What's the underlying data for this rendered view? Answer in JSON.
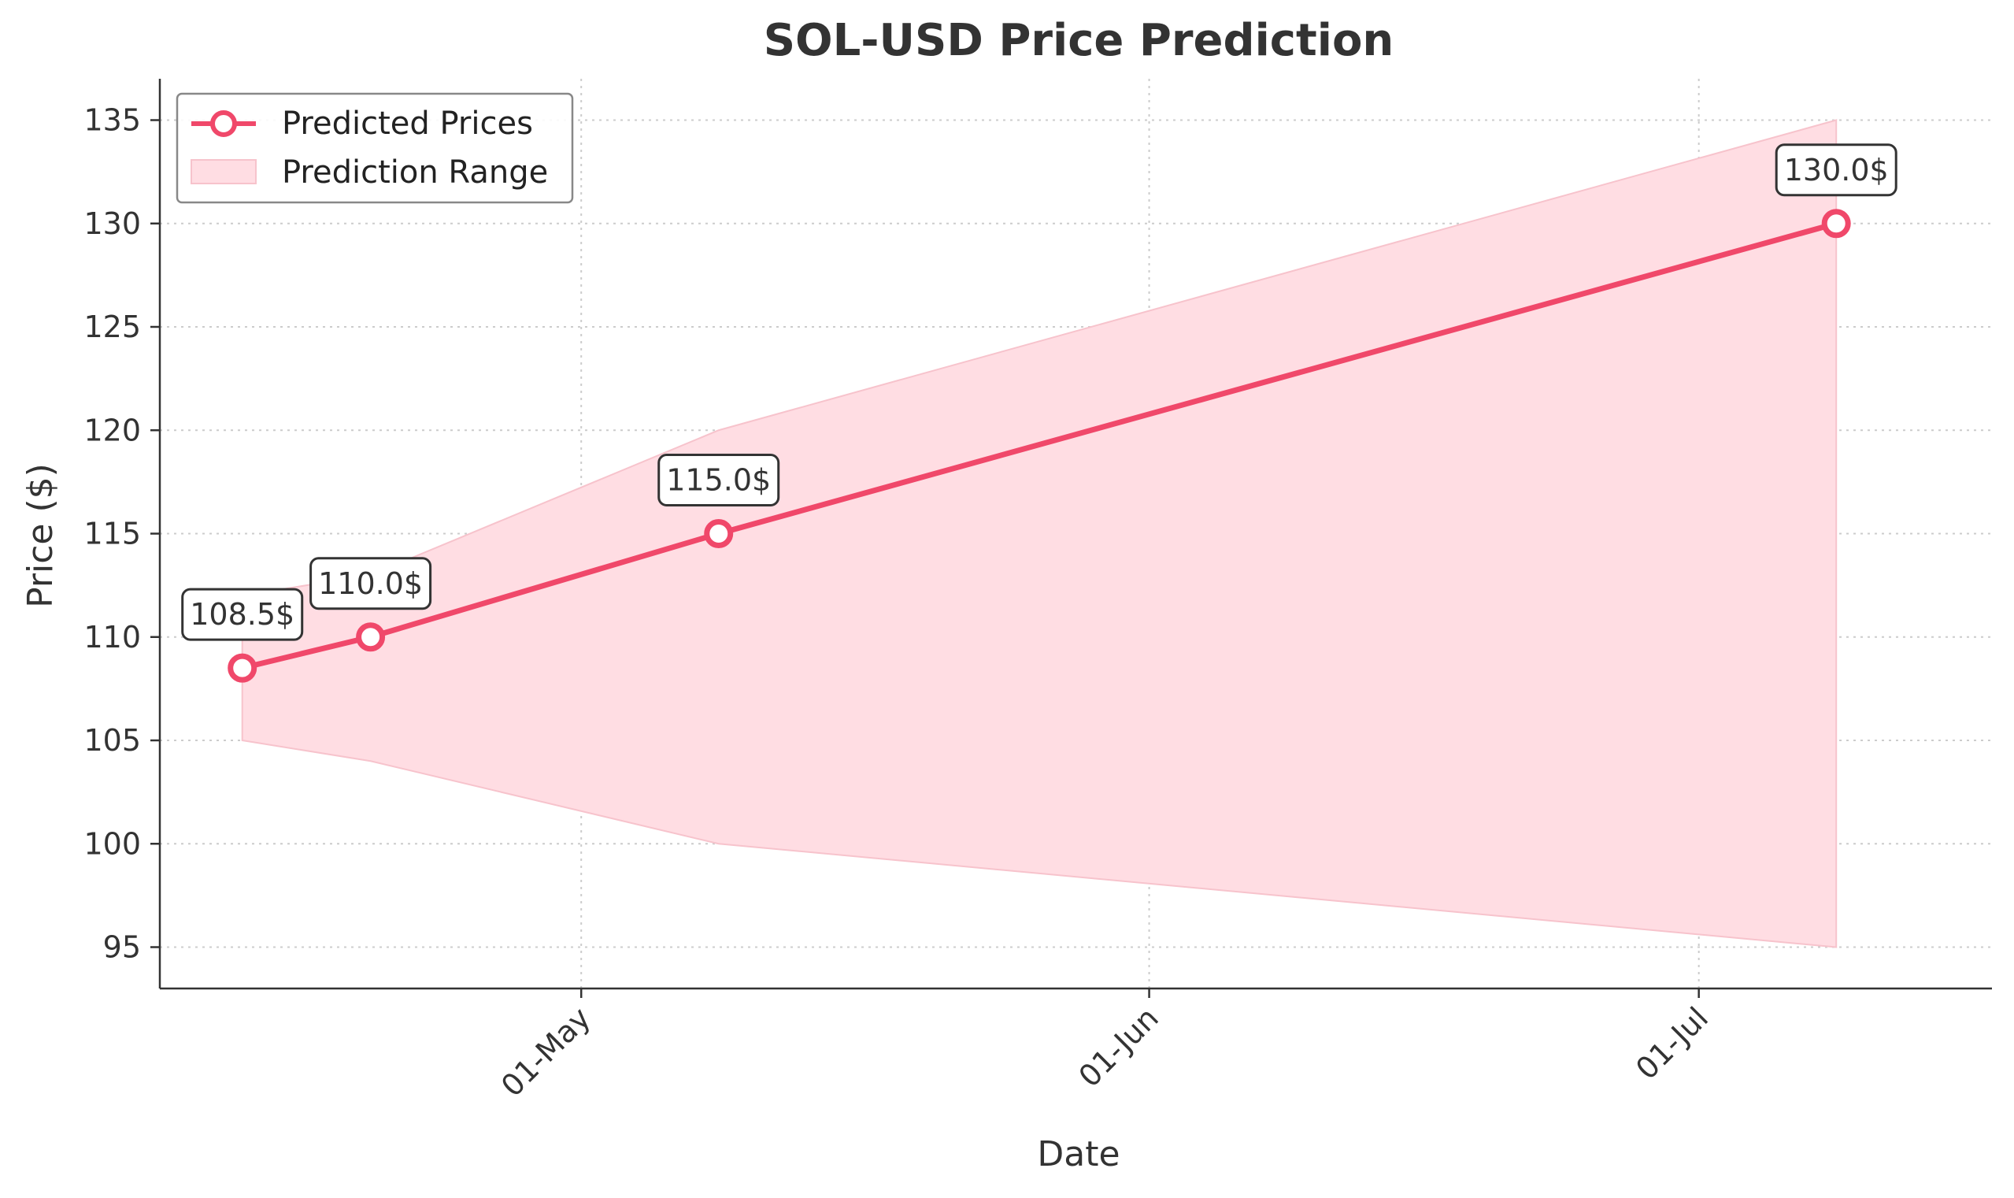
{
  "chart_data": {
    "type": "line",
    "title": "SOL-USD Price Prediction",
    "xlabel": "Date",
    "ylabel": "Price ($)",
    "ylim": [
      93,
      137
    ],
    "yticks": [
      95,
      100,
      105,
      110,
      115,
      120,
      125,
      130,
      135
    ],
    "x_range_days": [
      0,
      100
    ],
    "xticks": [
      {
        "label": "01-May",
        "day": 23
      },
      {
        "label": "01-Jun",
        "day": 54
      },
      {
        "label": "01-Jul",
        "day": 84
      }
    ],
    "grid": true,
    "legend_position": "top-left",
    "series": [
      {
        "name": "Predicted Prices",
        "color": "#f0486a",
        "points": [
          {
            "day": 4.5,
            "value": 108.5,
            "label": "108.5$"
          },
          {
            "day": 11.5,
            "value": 110.0,
            "label": "110.0$"
          },
          {
            "day": 30.5,
            "value": 115.0,
            "label": "115.0$"
          },
          {
            "day": 91.5,
            "value": 130.0,
            "label": "130.0$"
          }
        ]
      }
    ],
    "range": {
      "name": "Prediction Range",
      "color": "#ffdde3",
      "edge_color": "#f7c3cc",
      "points": [
        {
          "day": 4.5,
          "low": 105,
          "high": 112
        },
        {
          "day": 11.5,
          "low": 104,
          "high": 113
        },
        {
          "day": 30.5,
          "low": 100,
          "high": 120
        },
        {
          "day": 91.5,
          "low": 95,
          "high": 135
        }
      ]
    }
  }
}
